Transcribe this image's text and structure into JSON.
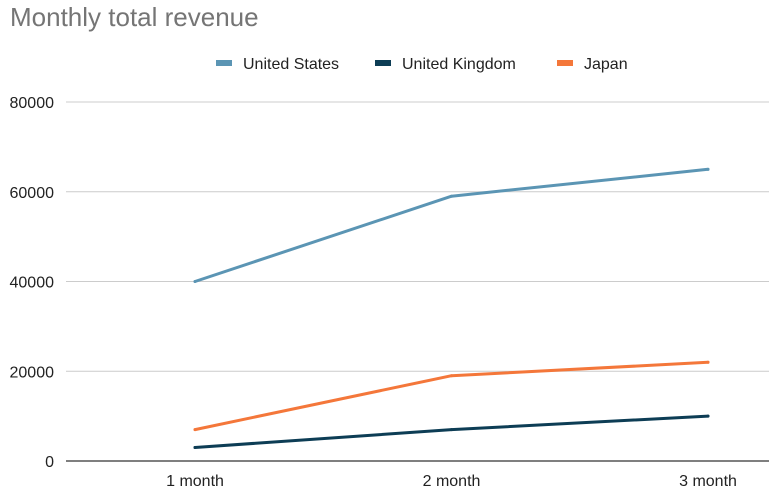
{
  "chart_data": {
    "type": "line",
    "title": "Monthly total revenue",
    "xlabel": "",
    "ylabel": "",
    "categories": [
      "1 month",
      "2 month",
      "3 month"
    ],
    "ylim": [
      0,
      80000
    ],
    "yticks": [
      0,
      20000,
      40000,
      60000,
      80000
    ],
    "grid": true,
    "legend_position": "top-center",
    "series": [
      {
        "name": "United States",
        "values": [
          40000,
          59000,
          65000
        ],
        "color": "#5b95b4"
      },
      {
        "name": "United Kingdom",
        "values": [
          3000,
          7000,
          10000
        ],
        "color": "#0d3d55"
      },
      {
        "name": "Japan",
        "values": [
          7000,
          19000,
          22000
        ],
        "color": "#f4773a"
      }
    ]
  },
  "colors": {
    "gridline": "#cccccc",
    "axis": "#333333",
    "title": "#757575"
  }
}
